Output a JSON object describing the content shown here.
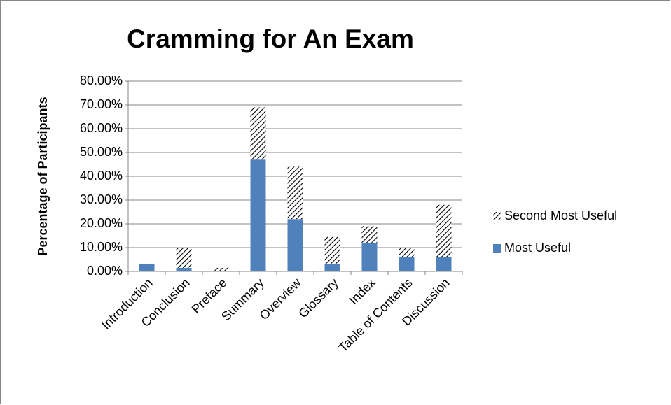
{
  "chart_data": {
    "type": "stacked_bar",
    "title": "Cramming for An Exam",
    "y_label": "Percentage of Participants",
    "categories": [
      "Introduction",
      "Conclusion",
      "Preface",
      "Summary",
      "Overview",
      "Glossary",
      "Index",
      "Table of Contents",
      "Discussion"
    ],
    "series": [
      {
        "name": "Most Useful",
        "color": "#4f81bd",
        "values": [
          3,
          1.5,
          0,
          47,
          22,
          3,
          12,
          6,
          6
        ]
      },
      {
        "name": "Second Most Useful",
        "color": "#000000",
        "pattern": "hatch",
        "values": [
          0,
          8.5,
          1.5,
          22,
          22,
          11.5,
          7,
          4,
          22
        ]
      }
    ],
    "ylim": [
      0,
      80
    ],
    "yticks": [
      {
        "value": 0,
        "label": "0.00%"
      },
      {
        "value": 10,
        "label": "10.00%"
      },
      {
        "value": 20,
        "label": "20.00%"
      },
      {
        "value": 30,
        "label": "30.00%"
      },
      {
        "value": 40,
        "label": "40.00%"
      },
      {
        "value": 50,
        "label": "50.00%"
      },
      {
        "value": 60,
        "label": "60.00%"
      },
      {
        "value": 70,
        "label": "70.00%"
      },
      {
        "value": 80,
        "label": "80.00%"
      }
    ],
    "grid": true,
    "legend": "right"
  }
}
